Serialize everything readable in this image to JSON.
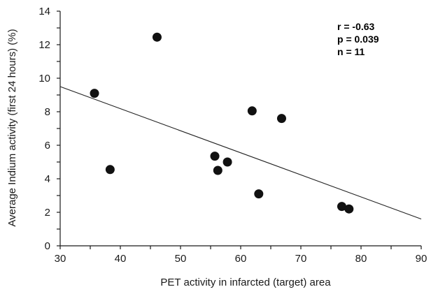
{
  "chart_data": {
    "type": "scatter",
    "xlabel": "PET activity in infarcted (target) area",
    "ylabel": "Average Indium activity (first 24 hours) (%)",
    "xlim": [
      30,
      90
    ],
    "ylim": [
      0,
      14
    ],
    "x_ticks": [
      "30",
      "40",
      "50",
      "60",
      "70",
      "80",
      "90"
    ],
    "y_ticks": [
      "0",
      "2",
      "4",
      "6",
      "8",
      "10",
      "12",
      "14"
    ],
    "grid": false,
    "points": [
      {
        "x": 35.7,
        "y": 9.1
      },
      {
        "x": 38.3,
        "y": 4.55
      },
      {
        "x": 46.1,
        "y": 12.45
      },
      {
        "x": 55.7,
        "y": 5.35
      },
      {
        "x": 56.2,
        "y": 4.5
      },
      {
        "x": 57.8,
        "y": 5.0
      },
      {
        "x": 61.9,
        "y": 8.05
      },
      {
        "x": 63.0,
        "y": 3.1
      },
      {
        "x": 66.8,
        "y": 7.6
      },
      {
        "x": 76.8,
        "y": 2.35
      },
      {
        "x": 78.0,
        "y": 2.2
      }
    ],
    "trendline": {
      "from": {
        "x": 30,
        "y": 9.5
      },
      "to": {
        "x": 90,
        "y": 1.6
      }
    },
    "annotations": [
      "r = -0.63",
      "p = 0.039",
      "n = 11"
    ],
    "colors": {
      "points": "#111111",
      "axes": "#1a1a1a",
      "trendline": "#222222"
    }
  }
}
